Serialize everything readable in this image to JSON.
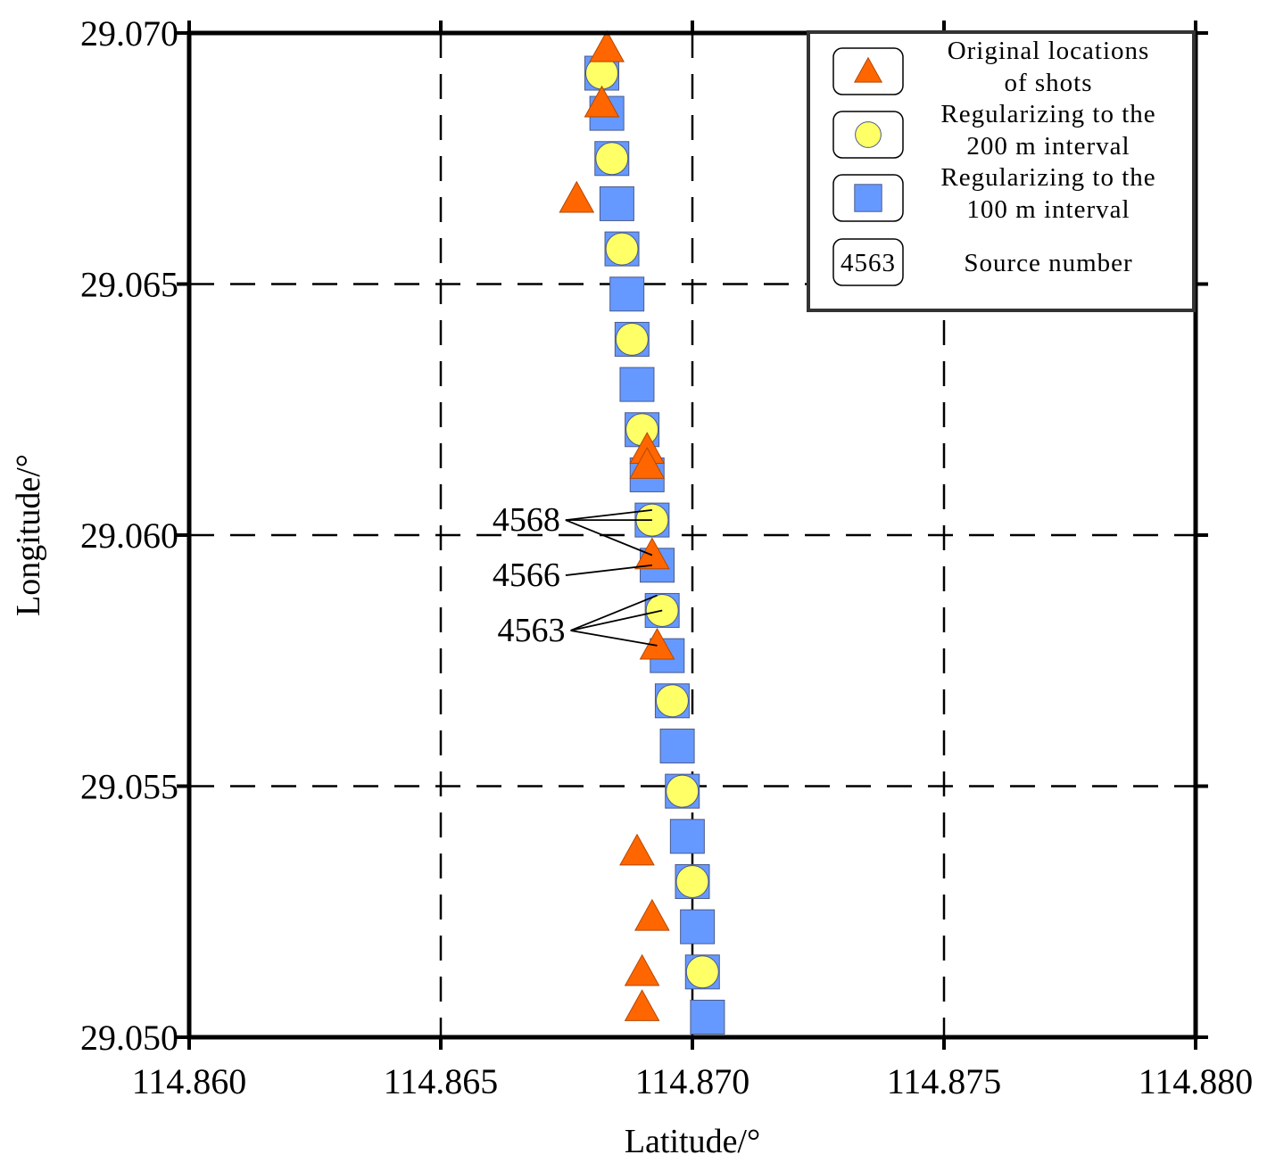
{
  "chart_data": {
    "type": "scatter",
    "xlabel": "Latitude/°",
    "ylabel": "Longitude/°",
    "xlim": [
      114.86,
      114.88
    ],
    "ylim": [
      29.05,
      29.07
    ],
    "x_ticks": [
      "114.860",
      "114.865",
      "114.870",
      "114.875",
      "114.880"
    ],
    "y_ticks": [
      "29.050",
      "29.055",
      "29.060",
      "29.065",
      "29.070"
    ],
    "grid": "dashed",
    "legend_position": "top-right",
    "legend": [
      {
        "lines": [
          "Original locations",
          "of shots"
        ],
        "marker": "triangle"
      },
      {
        "lines": [
          "Regularizing to the",
          "200 m interval"
        ],
        "marker": "circle"
      },
      {
        "lines": [
          "Regularizing to the",
          "100 m interval"
        ],
        "marker": "square"
      },
      {
        "lines": [
          "Source number"
        ],
        "marker": "label",
        "sample": "4563"
      }
    ],
    "colors": {
      "triangle": "#ff6600",
      "circle": "#ffff66",
      "square": "#6699ff",
      "edge": "#4a5a8a"
    },
    "series": [
      {
        "marker": "square",
        "points": [
          [
            114.8682,
            29.0692
          ],
          [
            114.8683,
            29.0684
          ],
          [
            114.8684,
            29.0675
          ],
          [
            114.8685,
            29.0666
          ],
          [
            114.8686,
            29.0657
          ],
          [
            114.8687,
            29.0648
          ],
          [
            114.8688,
            29.0639
          ],
          [
            114.8689,
            29.063
          ],
          [
            114.869,
            29.0621
          ],
          [
            114.8691,
            29.0612
          ],
          [
            114.8692,
            29.0603
          ],
          [
            114.8693,
            29.0594
          ],
          [
            114.8694,
            29.0585
          ],
          [
            114.8695,
            29.0576
          ],
          [
            114.8696,
            29.0567
          ],
          [
            114.8697,
            29.0558
          ],
          [
            114.8698,
            29.0549
          ],
          [
            114.8699,
            29.054
          ],
          [
            114.87,
            29.0531
          ],
          [
            114.8701,
            29.0522
          ],
          [
            114.8702,
            29.0513
          ],
          [
            114.8703,
            29.0504
          ]
        ]
      },
      {
        "marker": "circle",
        "points": [
          [
            114.8682,
            29.0692
          ],
          [
            114.8684,
            29.0675
          ],
          [
            114.8686,
            29.0657
          ],
          [
            114.8688,
            29.0639
          ],
          [
            114.869,
            29.0621
          ],
          [
            114.8692,
            29.0603
          ],
          [
            114.8694,
            29.0585
          ],
          [
            114.8696,
            29.0567
          ],
          [
            114.8698,
            29.0549
          ],
          [
            114.87,
            29.0531
          ],
          [
            114.8702,
            29.0513
          ]
        ]
      },
      {
        "marker": "triangle",
        "points": [
          [
            114.8683,
            29.0697
          ],
          [
            114.8682,
            29.0686
          ],
          [
            114.8677,
            29.0667
          ],
          [
            114.8691,
            29.0617
          ],
          [
            114.8691,
            29.0614
          ],
          [
            114.8692,
            29.0596
          ],
          [
            114.8693,
            29.0578
          ],
          [
            114.8689,
            29.0537
          ],
          [
            114.8692,
            29.0524
          ],
          [
            114.869,
            29.0513
          ],
          [
            114.869,
            29.0506
          ]
        ]
      }
    ],
    "annotations": [
      {
        "text": "4568",
        "label_at": [
          114.8667,
          29.0603
        ],
        "targets": [
          [
            114.8692,
            29.0605
          ],
          [
            114.8692,
            29.0603
          ],
          [
            114.8692,
            29.0596
          ]
        ]
      },
      {
        "text": "4566",
        "label_at": [
          114.8667,
          29.0592
        ],
        "targets": [
          [
            114.8692,
            29.0594
          ]
        ]
      },
      {
        "text": "4563",
        "label_at": [
          114.8668,
          29.0581
        ],
        "targets": [
          [
            114.8693,
            29.0588
          ],
          [
            114.8694,
            29.0585
          ],
          [
            114.8693,
            29.0578
          ]
        ]
      }
    ]
  }
}
